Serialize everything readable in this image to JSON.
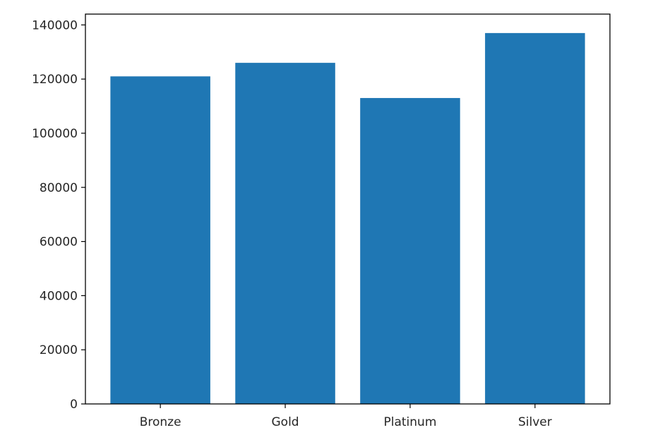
{
  "chart_data": {
    "type": "bar",
    "title": "",
    "xlabel": "",
    "ylabel": "",
    "categories": [
      "Bronze",
      "Gold",
      "Platinum",
      "Silver"
    ],
    "values": [
      121000,
      126000,
      113000,
      137000
    ],
    "ylim": [
      0,
      144000
    ],
    "yticks": [
      0,
      20000,
      40000,
      60000,
      80000,
      100000,
      120000,
      140000
    ],
    "ytick_labels": [
      "0",
      "20000",
      "40000",
      "60000",
      "80000",
      "100000",
      "120000",
      "140000"
    ],
    "bar_color": "#1f77b4",
    "grid": false,
    "legend": "none"
  }
}
